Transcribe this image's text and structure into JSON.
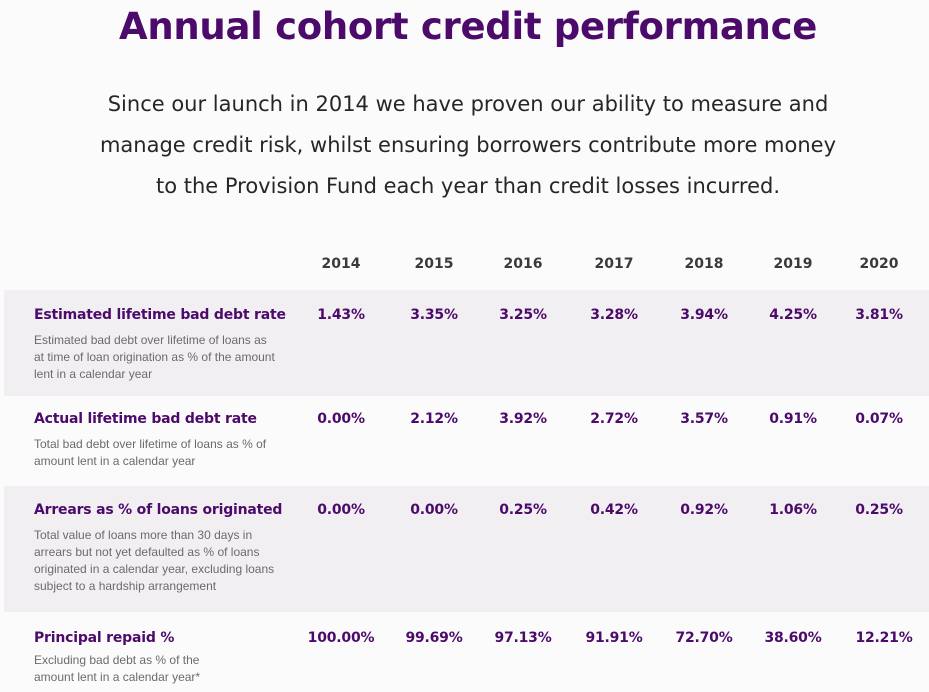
{
  "header": {
    "title": "Annual cohort credit performance",
    "intro_lines": [
      "Since our launch in 2014 we have proven our ability to measure and",
      "manage credit risk, whilst ensuring borrowers contribute more money",
      "to the Provision Fund each year than credit losses incurred."
    ]
  },
  "table": {
    "years": [
      "2014",
      "2015",
      "2016",
      "2017",
      "2018",
      "2019",
      "2020"
    ],
    "rows": [
      {
        "name": "Estimated lifetime bad debt rate",
        "description": "Estimated bad debt over lifetime of loans as at time of loan origination as % of the amount lent in a calendar year",
        "values": [
          "1.43%",
          "3.35%",
          "3.25%",
          "3.28%",
          "3.94%",
          "4.25%",
          "3.81%"
        ]
      },
      {
        "name": "Actual lifetime bad debt rate",
        "description": "Total bad debt over lifetime of loans as % of amount lent in a calendar year",
        "values": [
          "0.00%",
          "2.12%",
          "3.92%",
          "2.72%",
          "3.57%",
          "0.91%",
          "0.07%"
        ]
      },
      {
        "name": "Arrears as % of loans originated",
        "description": "Total value of loans more than 30 days in arrears but not yet defaulted as % of loans originated in a calendar year, excluding loans subject to a hardship arrangement",
        "values": [
          "0.00%",
          "0.00%",
          "0.25%",
          "0.42%",
          "0.92%",
          "1.06%",
          "0.25%"
        ]
      },
      {
        "name": "Principal repaid %",
        "description": "Excluding bad debt as % of the amount lent in a calendar year*",
        "values": [
          "100.00%",
          "99.69%",
          "97.13%",
          "91.91%",
          "72.70%",
          "38.60%",
          "12.21%"
        ]
      }
    ]
  }
}
